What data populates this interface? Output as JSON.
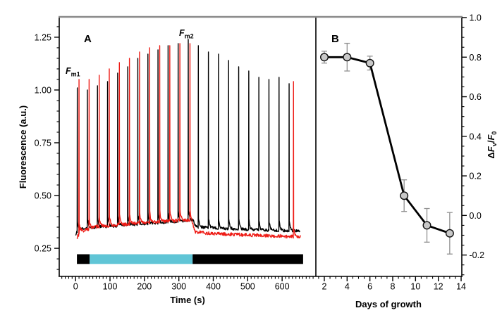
{
  "panels": {
    "a": {
      "label": "A",
      "x_title": "Time (s)",
      "y_title": "Fluorescence (a.u.)",
      "fm1_main": "F",
      "fm1_sub": "m1",
      "fm2_main": "F",
      "fm2_sub": "m2"
    },
    "b": {
      "label": "B",
      "x_title": "Days of growth",
      "y_delta": "Δ",
      "y_f1": "F",
      "y_sub_v": "v",
      "y_slash": "/",
      "y_f2": "F",
      "y_sub_0": "0"
    }
  },
  "colors": {
    "trace_black": "#000000",
    "trace_red": "#ee1c16",
    "light_bar_cyan": "#60c5d6",
    "light_bar_dark": "#000000",
    "frame_top_gray": "#8a8a8a",
    "marker_fill": "#c8c8c8",
    "marker_edge": "#111111",
    "errorbar_gray": "#909090"
  },
  "chart_data": [
    {
      "panel": "A",
      "type": "line",
      "title": "",
      "xlabel": "Time (s)",
      "ylabel": "Fluorescence (a.u.)",
      "xlim": [
        -47.5,
        698
      ],
      "ylim": [
        0.117,
        1.343
      ],
      "xticks": [
        {
          "v": 0,
          "label": "0"
        },
        {
          "v": 100,
          "label": "100"
        },
        {
          "v": 200,
          "label": "200"
        },
        {
          "v": 300,
          "label": "300"
        },
        {
          "v": 400,
          "label": "400"
        },
        {
          "v": 500,
          "label": "500"
        },
        {
          "v": 600,
          "label": "600"
        }
      ],
      "yticks": [
        {
          "v": 0.25,
          "label": "0.25"
        },
        {
          "v": 0.5,
          "label": "0.50"
        },
        {
          "v": 0.75,
          "label": "0.75"
        },
        {
          "v": 1.0,
          "label": "1.00"
        },
        {
          "v": 1.25,
          "label": "1.25"
        }
      ],
      "minor_x_step": 10,
      "minor_x_from": -40,
      "minor_x_to": 690,
      "minor_y_step": 0.05,
      "minor_y_from": 0.15,
      "minor_y_to": 1.3,
      "annotations": [
        {
          "name": "Fm1",
          "t": -28,
          "value": 1.1
        },
        {
          "name": "Fm2",
          "t": 300,
          "value": 1.29
        }
      ],
      "series": [
        {
          "name": "dark-control-trace",
          "color": "#000000",
          "noise": 0.013,
          "seed": 11,
          "t_start": 0,
          "t_end": 652,
          "baseline": [
            [
              0,
              0.315
            ],
            [
              8,
              0.34
            ],
            [
              60,
              0.35
            ],
            [
              150,
              0.36
            ],
            [
              250,
              0.372
            ],
            [
              330,
              0.382
            ],
            [
              341,
              0.382
            ],
            [
              350,
              0.352
            ],
            [
              420,
              0.345
            ],
            [
              520,
              0.338
            ],
            [
              620,
              0.333
            ],
            [
              652,
              0.332
            ]
          ],
          "spikes": [
            [
              5,
              1.01
            ],
            [
              34.3,
              1.0
            ],
            [
              63.6,
              1.02
            ],
            [
              92.9,
              1.04
            ],
            [
              122.2,
              1.08
            ],
            [
              151.5,
              1.11
            ],
            [
              180.8,
              1.15
            ],
            [
              210.1,
              1.17
            ],
            [
              239.4,
              1.19
            ],
            [
              268.7,
              1.21
            ],
            [
              298,
              1.22
            ],
            [
              327.3,
              1.24
            ],
            [
              356.6,
              1.21
            ],
            [
              385.9,
              1.18
            ],
            [
              415.2,
              1.17
            ],
            [
              444.5,
              1.14
            ],
            [
              473.8,
              1.11
            ],
            [
              503.1,
              1.09
            ],
            [
              532.4,
              1.06
            ],
            [
              561.7,
              1.05
            ],
            [
              591,
              1.06
            ],
            [
              620.3,
              1.03
            ]
          ]
        },
        {
          "name": "light-treated-trace",
          "color": "#ee1c16",
          "noise": 0.016,
          "seed": 37,
          "t_start": 4,
          "t_end": 654,
          "baseline": [
            [
              4,
              0.3
            ],
            [
              14,
              0.33
            ],
            [
              60,
              0.352
            ],
            [
              150,
              0.365
            ],
            [
              250,
              0.378
            ],
            [
              336,
              0.385
            ],
            [
              348,
              0.327
            ],
            [
              420,
              0.318
            ],
            [
              520,
              0.312
            ],
            [
              620,
              0.306
            ],
            [
              654,
              0.305
            ]
          ],
          "spikes": [
            [
              10,
              1.05
            ],
            [
              39.3,
              1.05
            ],
            [
              68.6,
              1.07
            ],
            [
              97.9,
              1.1
            ],
            [
              127.2,
              1.13
            ],
            [
              156.5,
              1.15
            ],
            [
              185.8,
              1.18
            ],
            [
              215.1,
              1.2
            ],
            [
              244.4,
              1.21
            ],
            [
              273.7,
              1.21
            ],
            [
              303,
              1.22
            ],
            [
              332.3,
              1.22
            ],
            [
              633,
              1.04
            ]
          ]
        }
      ],
      "light_bar": {
        "y_top_value": 0.222,
        "y_bottom_value": 0.176,
        "segments": [
          {
            "name": "dark-segment",
            "t_from": 4,
            "t_to": 41,
            "color": "#000000"
          },
          {
            "name": "light-segment",
            "t_from": 41,
            "t_to": 340,
            "color": "#60c5d6"
          },
          {
            "name": "dark-segment",
            "t_from": 340,
            "t_to": 661,
            "color": "#000000"
          }
        ]
      }
    },
    {
      "panel": "B",
      "type": "scatter-line",
      "title": "",
      "xlabel": "Days of growth",
      "ylabel": "ΔFv/F0",
      "xlim": [
        1.26,
        14.06
      ],
      "ylim": [
        -0.308,
        1.0
      ],
      "xticks": [
        {
          "v": 2,
          "label": "2"
        },
        {
          "v": 4,
          "label": "4"
        },
        {
          "v": 6,
          "label": "6"
        },
        {
          "v": 8,
          "label": "8"
        },
        {
          "v": 10,
          "label": "10"
        },
        {
          "v": 12,
          "label": "12"
        },
        {
          "v": 14,
          "label": "14"
        }
      ],
      "yticks": [
        {
          "v": 1.0,
          "label": "1.0"
        },
        {
          "v": 0.8,
          "label": "0.8"
        },
        {
          "v": 0.6,
          "label": "0.6"
        },
        {
          "v": 0.4,
          "label": "0.4"
        },
        {
          "v": 0.2,
          "label": "0.2"
        },
        {
          "v": 0.0,
          "label": "0.0"
        },
        {
          "v": -0.2,
          "label": "-0.2"
        }
      ],
      "minor_x_step": 0.5,
      "minor_x_from": 1.5,
      "minor_x_to": 14,
      "minor_y_step": 0.05,
      "minor_y_from": -0.3,
      "minor_y_to": 1.0,
      "x": [
        2,
        4,
        6,
        9,
        11,
        13
      ],
      "y": [
        0.8,
        0.8,
        0.77,
        0.1,
        -0.05,
        -0.09
      ],
      "yerr": [
        0.03,
        0.07,
        0.035,
        0.08,
        0.085,
        0.105
      ],
      "style": {
        "marker_fill": "#c8c8c8",
        "marker_edge": "#111111",
        "marker_radius": 5.3,
        "line_color": "#000000",
        "line_width": 2.8,
        "errorbar_color": "#909090",
        "errorbar_width": 1.3,
        "cap_halfwidth": 4
      }
    }
  ]
}
